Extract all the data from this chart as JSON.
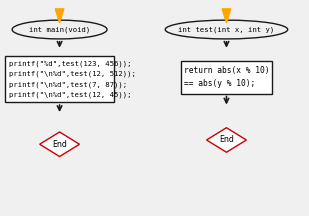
{
  "bg_color": "#f0f0f0",
  "left_oval_text": "int main(void)",
  "left_box_lines": [
    "printf(\"%d\",test(123, 456));",
    "printf(\"\\n%d\",test(12, 512));",
    "printf(\"\\n%d\",test(7, 87));",
    "printf(\"\\n%d\",test(12, 45));"
  ],
  "left_end_text": "End",
  "right_oval_text": "int test(int x, int y)",
  "right_box_lines": [
    "return abs(x % 10)",
    "== abs(y % 10);"
  ],
  "right_end_text": "End",
  "arrow_color": "#FFA500",
  "flow_arrow_color": "#1a1a1a",
  "oval_fill": "#f0f0f0",
  "oval_edge": "#1a1a1a",
  "box_fill": "#ffffff",
  "box_edge": "#1a1a1a",
  "diamond_fill": "#ffffff",
  "diamond_edge": "#cc0000",
  "text_color": "#000000",
  "font_size": 5.2
}
